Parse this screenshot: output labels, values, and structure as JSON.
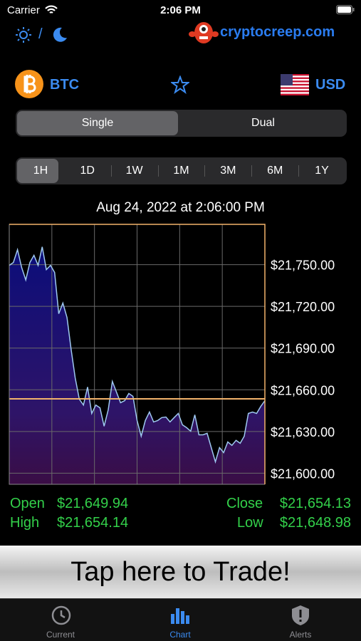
{
  "status": {
    "carrier": "Carrier",
    "time": "2:06 PM"
  },
  "header": {
    "separator": "/",
    "logo_text": "cryptocreep.com"
  },
  "selector": {
    "coin": "BTC",
    "currency": "USD"
  },
  "segments": [
    "Single",
    "Dual"
  ],
  "ranges": [
    "1H",
    "1D",
    "1W",
    "1M",
    "3M",
    "6M",
    "1Y"
  ],
  "timestamp": "Aug 24, 2022 at 2:06:00 PM",
  "chart_data": {
    "type": "line",
    "values": [
      21749.5,
      21751.6,
      21760.8,
      21748,
      21739,
      21751.6,
      21756.7,
      21749.5,
      21762.8,
      21746.4,
      21749.5,
      21744.4,
      21714.7,
      21722.4,
      21712,
      21689,
      21668.6,
      21653.2,
      21649,
      21662,
      21643,
      21649,
      21647,
      21633.8,
      21645.6,
      21666,
      21658.4,
      21650.7,
      21652.2,
      21657.3,
      21655.3,
      21637.9,
      21626.6,
      21637.9,
      21644,
      21636.9,
      21637.9,
      21640,
      21640.4,
      21636.9,
      21640,
      21643,
      21634.8,
      21632.8,
      21630.2,
      21642,
      21627.6,
      21627.6,
      21628.7,
      21618.4,
      21608.2,
      21618.4,
      21614.8,
      21622.5,
      21620,
      21623.6,
      21621.5,
      21626.6,
      21643,
      21644,
      21643,
      21648,
      21652.2
    ],
    "color": "#9ec8f0",
    "reference_value": 21653.5,
    "reference_color": "#f2b36b",
    "ylim": [
      21592,
      21779
    ],
    "yticks": [
      {
        "value": 21600,
        "label": "$21,600.00"
      },
      {
        "value": 21630,
        "label": "$21,630.00"
      },
      {
        "value": 21660,
        "label": "$21,660.00"
      },
      {
        "value": 21690,
        "label": "$21,690.00"
      },
      {
        "value": 21720,
        "label": "$21,720.00"
      },
      {
        "value": 21750,
        "label": "$21,750.00"
      }
    ],
    "grid": true
  },
  "stats": {
    "open_label": "Open",
    "open": "$21,649.94",
    "high_label": "High",
    "high": "$21,654.14",
    "close_label": "Close",
    "close": "$21,654.13",
    "low_label": "Low",
    "low": "$21,648.98"
  },
  "banner": "Tap here to Trade!",
  "tabs": [
    "Current",
    "Chart",
    "Alerts"
  ]
}
